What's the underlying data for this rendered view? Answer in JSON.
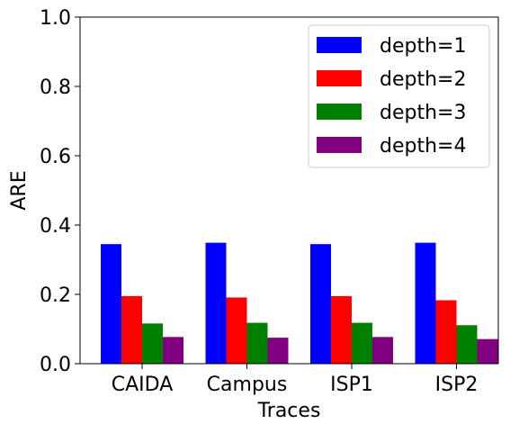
{
  "chart_data": {
    "type": "bar",
    "title": "",
    "xlabel": "Traces",
    "ylabel": "ARE",
    "categories": [
      "CAIDA",
      "Campus",
      "ISP1",
      "ISP2"
    ],
    "ylim": [
      0,
      1.0
    ],
    "yticks": [
      "0.0",
      "0.2",
      "0.4",
      "0.6",
      "0.8",
      "1.0"
    ],
    "grid": false,
    "legend_position": "top-right",
    "series": [
      {
        "name": "depth=1",
        "color": "#0000ff",
        "values": [
          0.345,
          0.349,
          0.345,
          0.349
        ]
      },
      {
        "name": "depth=2",
        "color": "#ff0000",
        "values": [
          0.195,
          0.191,
          0.195,
          0.183
        ]
      },
      {
        "name": "depth=3",
        "color": "#008000",
        "values": [
          0.116,
          0.118,
          0.118,
          0.111
        ]
      },
      {
        "name": "depth=4",
        "color": "#800080",
        "values": [
          0.077,
          0.075,
          0.077,
          0.071
        ]
      }
    ]
  }
}
